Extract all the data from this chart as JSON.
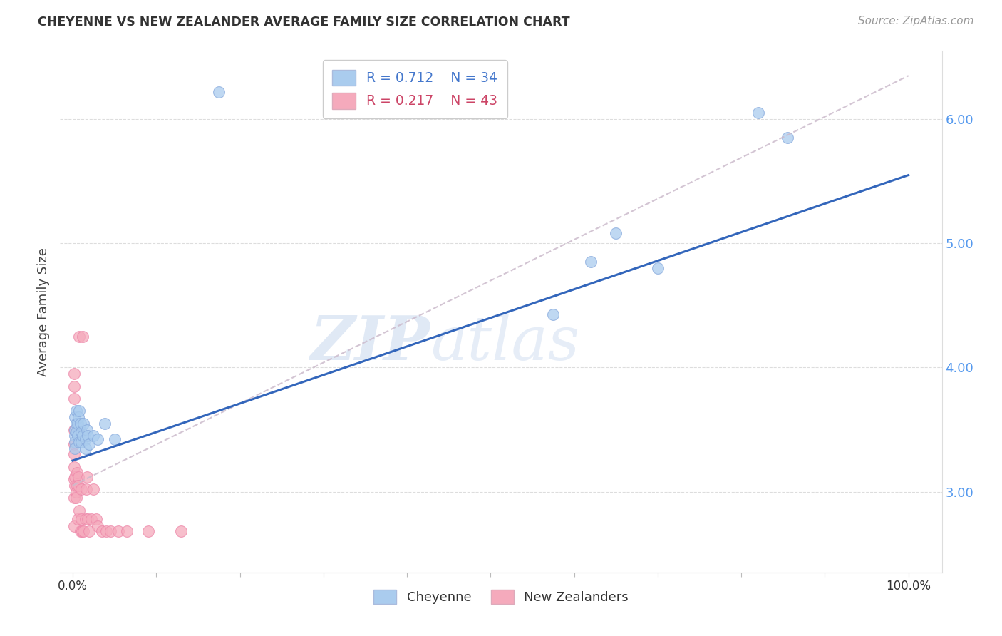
{
  "title": "CHEYENNE VS NEW ZEALANDER AVERAGE FAMILY SIZE CORRELATION CHART",
  "source_text": "Source: ZipAtlas.com",
  "ylabel": "Average Family Size",
  "watermark": "ZIPatlas",
  "cheyenne_R": 0.712,
  "cheyenne_N": 34,
  "nz_R": 0.217,
  "nz_N": 43,
  "cheyenne_color": "#aaccee",
  "cheyenne_edge_color": "#88aadd",
  "cheyenne_line_color": "#3366bb",
  "nz_color": "#f5aabc",
  "nz_edge_color": "#ee88aa",
  "nz_line_color": "#cc6688",
  "background_color": "#ffffff",
  "grid_color": "#dddddd",
  "ytick_color": "#5599ee",
  "yticks": [
    3.0,
    4.0,
    5.0,
    6.0
  ],
  "ymin": 2.35,
  "ymax": 6.55,
  "xmin": -0.015,
  "xmax": 1.04,
  "cheyenne_x": [
    0.175,
    0.003,
    0.003,
    0.003,
    0.003,
    0.003,
    0.004,
    0.004,
    0.004,
    0.006,
    0.006,
    0.007,
    0.008,
    0.008,
    0.009,
    0.01,
    0.01,
    0.012,
    0.013,
    0.015,
    0.015,
    0.017,
    0.018,
    0.02,
    0.025,
    0.03,
    0.038,
    0.05,
    0.575,
    0.62,
    0.65,
    0.7,
    0.82,
    0.855
  ],
  "cheyenne_y": [
    6.22,
    3.6,
    3.5,
    3.45,
    3.4,
    3.35,
    3.55,
    3.48,
    3.65,
    3.55,
    3.45,
    3.6,
    3.65,
    3.4,
    3.55,
    3.48,
    3.4,
    3.45,
    3.55,
    3.42,
    3.35,
    3.5,
    3.45,
    3.38,
    3.45,
    3.42,
    3.55,
    3.42,
    4.43,
    4.85,
    5.08,
    4.8,
    6.05,
    5.85
  ],
  "nz_x": [
    0.002,
    0.002,
    0.002,
    0.002,
    0.002,
    0.002,
    0.002,
    0.002,
    0.002,
    0.002,
    0.003,
    0.003,
    0.004,
    0.004,
    0.005,
    0.005,
    0.006,
    0.007,
    0.007,
    0.008,
    0.008,
    0.009,
    0.01,
    0.01,
    0.011,
    0.012,
    0.013,
    0.015,
    0.016,
    0.017,
    0.018,
    0.02,
    0.022,
    0.025,
    0.028,
    0.03,
    0.035,
    0.04,
    0.045,
    0.055,
    0.065,
    0.09,
    0.13
  ],
  "nz_y": [
    3.95,
    3.85,
    3.75,
    3.5,
    3.38,
    3.3,
    3.2,
    3.1,
    2.95,
    2.72,
    3.12,
    3.05,
    3.0,
    2.95,
    3.15,
    3.05,
    2.78,
    3.12,
    3.05,
    2.85,
    4.25,
    2.68,
    2.78,
    3.02,
    2.68,
    4.25,
    2.68,
    2.78,
    3.02,
    3.12,
    2.78,
    2.68,
    2.78,
    3.02,
    2.78,
    2.72,
    2.68,
    2.68,
    2.68,
    2.68,
    2.68,
    2.68,
    2.68
  ],
  "cheyenne_trendline_x": [
    0.0,
    1.0
  ],
  "cheyenne_trendline_y": [
    3.25,
    5.55
  ],
  "nz_trendline_x": [
    0.0,
    1.0
  ],
  "nz_trendline_y": [
    3.05,
    6.35
  ]
}
